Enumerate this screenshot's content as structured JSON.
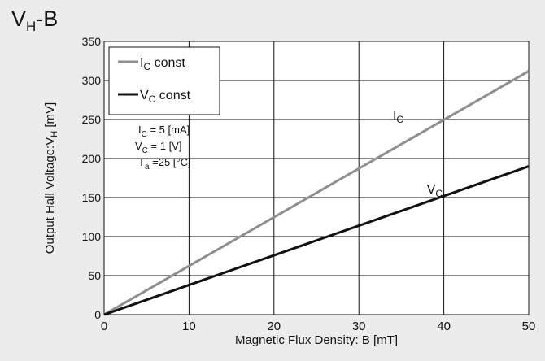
{
  "title": {
    "main": "V",
    "sub": "H",
    "suffix": "-B"
  },
  "chart_data": {
    "type": "line",
    "xlabel": "Magnetic Flux Density: B [mT]",
    "ylabel": "Output Hall Voltage:V",
    "ylabel_sub": "H",
    "ylabel_unit": " [mV]",
    "xlim": [
      0,
      50
    ],
    "ylim": [
      0,
      350
    ],
    "xticks": [
      0,
      10,
      20,
      30,
      40,
      50
    ],
    "yticks": [
      0,
      50,
      100,
      150,
      200,
      250,
      300,
      350
    ],
    "grid": true,
    "legend_position": "top-left",
    "series": [
      {
        "name": "I",
        "name_sub": "C",
        "name_suffix": " const",
        "color": "#8f8f8f",
        "x": [
          0,
          50
        ],
        "y": [
          0,
          312
        ],
        "label": "I",
        "label_sub": "C"
      },
      {
        "name": "V",
        "name_sub": "C",
        "name_suffix": " const",
        "color": "#111111",
        "x": [
          0,
          50
        ],
        "y": [
          0,
          190
        ],
        "label": "V",
        "label_sub": "C"
      }
    ],
    "conditions": [
      {
        "sym": "I",
        "sub": "C",
        "rest": " =  5  [mA]"
      },
      {
        "sym": "V",
        "sub": "C",
        "rest": " =  1  [V]"
      },
      {
        "sym": "T",
        "sub": "a",
        "rest": " =25 [°C]"
      }
    ]
  }
}
